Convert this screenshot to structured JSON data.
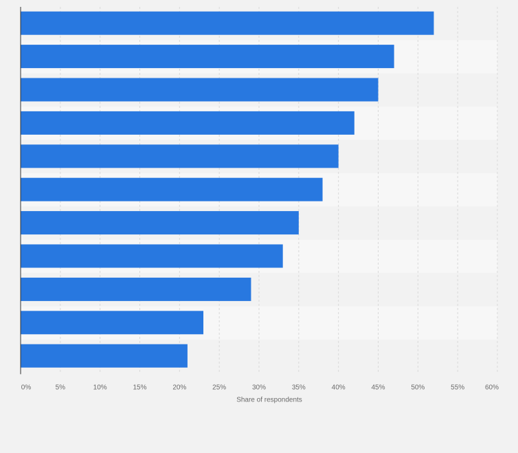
{
  "chart_data": {
    "type": "bar",
    "orientation": "horizontal",
    "title": "",
    "xlabel": "Share of respondents",
    "ylabel": "",
    "xlim": [
      0,
      60
    ],
    "x_ticks": [
      0,
      5,
      10,
      15,
      20,
      25,
      30,
      35,
      40,
      45,
      50,
      55,
      60
    ],
    "x_tick_labels": [
      "0%",
      "5%",
      "10%",
      "15%",
      "20%",
      "25%",
      "30%",
      "35%",
      "40%",
      "45%",
      "50%",
      "55%",
      "60%"
    ],
    "categories": [
      "",
      "",
      "",
      "",
      "",
      "",
      "",
      "",
      "",
      "",
      ""
    ],
    "values": [
      52,
      47,
      45,
      42,
      40,
      38,
      35,
      33,
      29,
      23,
      21
    ],
    "grid": true,
    "colors": {
      "bar": "#2878e0",
      "band_light": "#f7f7f7",
      "band_dark": "#f2f2f2",
      "grid": "#d9d9d9",
      "axis": "#333333"
    }
  }
}
